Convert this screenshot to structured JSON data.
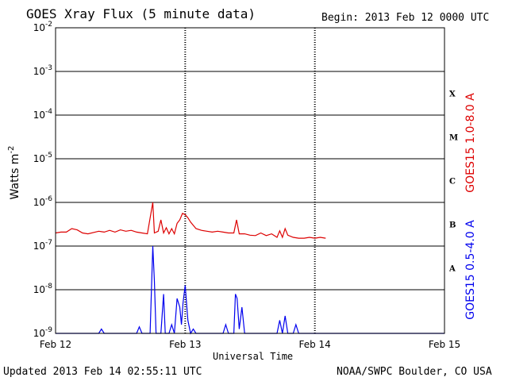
{
  "header": {
    "title": "GOES Xray Flux (5 minute data)",
    "begin": "Begin:  2013 Feb 12 0000 UTC"
  },
  "footer": {
    "updated": "Updated 2013 Feb 14 02:55:11 UTC",
    "credit": "NOAA/SWPC Boulder, CO USA"
  },
  "chart_data": {
    "type": "line",
    "title": "GOES Xray Flux (5 minute data)",
    "xlabel": "Universal Time",
    "ylabel": "Watts m",
    "ylabel_sup": "-2",
    "yscale": "log",
    "ylim": [
      1e-09,
      0.01
    ],
    "xlim": [
      0,
      72
    ],
    "x_units": "hours since 2013 Feb 12 0000 UTC",
    "x_ticks": [
      {
        "x": 0,
        "label": "Feb 12"
      },
      {
        "x": 24,
        "label": "Feb 13"
      },
      {
        "x": 48,
        "label": "Feb 14"
      },
      {
        "x": 72,
        "label": "Feb 15"
      }
    ],
    "y_ticks": [
      {
        "exp": -9,
        "base": "10",
        "sup": "-9"
      },
      {
        "exp": -8,
        "base": "10",
        "sup": "-8"
      },
      {
        "exp": -7,
        "base": "10",
        "sup": "-7"
      },
      {
        "exp": -6,
        "base": "10",
        "sup": "-6"
      },
      {
        "exp": -5,
        "base": "10",
        "sup": "-5"
      },
      {
        "exp": -4,
        "base": "10",
        "sup": "-4"
      },
      {
        "exp": -3,
        "base": "10",
        "sup": "-3"
      },
      {
        "exp": -2,
        "base": "10",
        "sup": "-2"
      }
    ],
    "flare_classes": [
      {
        "label": "A",
        "exp": -7.5
      },
      {
        "label": "B",
        "exp": -6.5
      },
      {
        "label": "C",
        "exp": -5.5
      },
      {
        "label": "M",
        "exp": -4.5
      },
      {
        "label": "X",
        "exp": -3.5
      }
    ],
    "grid": true,
    "series": [
      {
        "name": "GOES15 1.0-8.0 A",
        "color": "#dd0000",
        "points": [
          [
            0,
            -6.7
          ],
          [
            1,
            -6.68
          ],
          [
            2,
            -6.68
          ],
          [
            3,
            -6.6
          ],
          [
            4,
            -6.63
          ],
          [
            5,
            -6.7
          ],
          [
            6,
            -6.72
          ],
          [
            8,
            -6.66
          ],
          [
            9,
            -6.68
          ],
          [
            10,
            -6.64
          ],
          [
            11,
            -6.68
          ],
          [
            12,
            -6.63
          ],
          [
            13,
            -6.66
          ],
          [
            14,
            -6.64
          ],
          [
            15,
            -6.68
          ],
          [
            16,
            -6.7
          ],
          [
            17,
            -6.72
          ],
          [
            18,
            -6.0
          ],
          [
            18.3,
            -6.7
          ],
          [
            19,
            -6.66
          ],
          [
            19.5,
            -6.4
          ],
          [
            20,
            -6.7
          ],
          [
            20.5,
            -6.58
          ],
          [
            21,
            -6.72
          ],
          [
            21.5,
            -6.6
          ],
          [
            22,
            -6.72
          ],
          [
            22.5,
            -6.48
          ],
          [
            23,
            -6.4
          ],
          [
            23.5,
            -6.25
          ],
          [
            24,
            -6.28
          ],
          [
            24.5,
            -6.35
          ],
          [
            25,
            -6.45
          ],
          [
            26,
            -6.6
          ],
          [
            27,
            -6.64
          ],
          [
            28,
            -6.66
          ],
          [
            29,
            -6.68
          ],
          [
            30,
            -6.66
          ],
          [
            31,
            -6.68
          ],
          [
            32,
            -6.7
          ],
          [
            33,
            -6.7
          ],
          [
            33.5,
            -6.4
          ],
          [
            34,
            -6.72
          ],
          [
            35,
            -6.72
          ],
          [
            36,
            -6.75
          ],
          [
            37,
            -6.76
          ],
          [
            38,
            -6.7
          ],
          [
            39,
            -6.76
          ],
          [
            40,
            -6.72
          ],
          [
            41,
            -6.8
          ],
          [
            41.5,
            -6.65
          ],
          [
            42,
            -6.8
          ],
          [
            42.5,
            -6.6
          ],
          [
            43,
            -6.75
          ],
          [
            44,
            -6.8
          ],
          [
            45,
            -6.82
          ],
          [
            46,
            -6.82
          ],
          [
            47,
            -6.8
          ],
          [
            48,
            -6.82
          ],
          [
            49,
            -6.8
          ],
          [
            50,
            -6.82
          ]
        ]
      },
      {
        "name": "GOES15 0.5-4.0 A",
        "color": "#0000ee",
        "points": [
          [
            0,
            -9.0
          ],
          [
            8,
            -9.0
          ],
          [
            8.5,
            -8.9
          ],
          [
            9,
            -9.0
          ],
          [
            15,
            -9.0
          ],
          [
            15.5,
            -8.85
          ],
          [
            16,
            -9.0
          ],
          [
            17.5,
            -9.0
          ],
          [
            18,
            -7.0
          ],
          [
            18.3,
            -7.8
          ],
          [
            18.6,
            -9.0
          ],
          [
            19.5,
            -9.0
          ],
          [
            20,
            -8.1
          ],
          [
            20.3,
            -9.0
          ],
          [
            21,
            -9.0
          ],
          [
            21.5,
            -8.8
          ],
          [
            22,
            -9.0
          ],
          [
            22.5,
            -8.2
          ],
          [
            23,
            -8.4
          ],
          [
            23.3,
            -8.8
          ],
          [
            23.6,
            -8.3
          ],
          [
            24,
            -7.9
          ],
          [
            24.5,
            -8.7
          ],
          [
            25,
            -9.0
          ],
          [
            25.5,
            -8.9
          ],
          [
            26,
            -9.0
          ],
          [
            31,
            -9.0
          ],
          [
            31.5,
            -8.8
          ],
          [
            32,
            -9.0
          ],
          [
            33,
            -9.0
          ],
          [
            33.3,
            -8.1
          ],
          [
            33.6,
            -8.2
          ],
          [
            34,
            -8.9
          ],
          [
            34.5,
            -8.4
          ],
          [
            35,
            -9.0
          ],
          [
            41,
            -9.0
          ],
          [
            41.5,
            -8.7
          ],
          [
            42,
            -9.0
          ],
          [
            42.5,
            -8.6
          ],
          [
            43,
            -9.0
          ],
          [
            44,
            -9.0
          ],
          [
            44.5,
            -8.8
          ],
          [
            45,
            -9.0
          ],
          [
            72,
            -9.0
          ]
        ]
      }
    ]
  }
}
